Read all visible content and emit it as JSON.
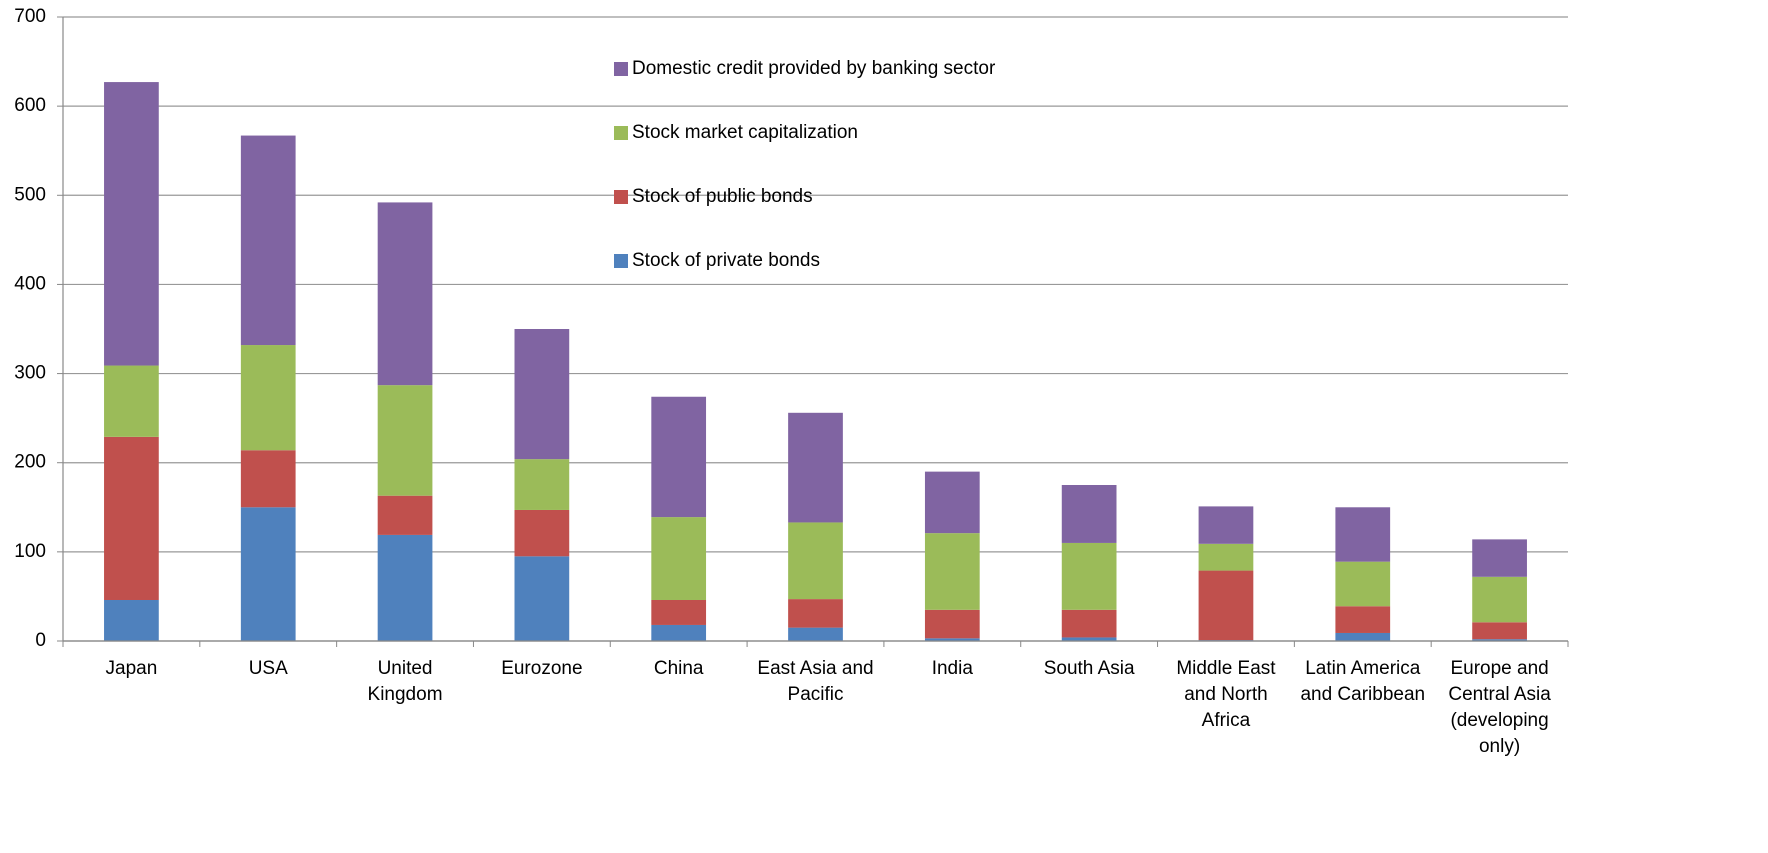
{
  "chart_data": {
    "type": "stacked_bar",
    "categories": [
      "Japan",
      "USA",
      "United Kingdom",
      "Eurozone",
      "China",
      "East Asia and Pacific",
      "India",
      "South Asia",
      "Middle East and North Africa",
      "Latin America and Caribbean",
      "Europe and Central Asia (developing only)"
    ],
    "series": [
      {
        "name": "Stock of private bonds",
        "color": "#4f81bd",
        "values": [
          46,
          150,
          119,
          95,
          18,
          15,
          3,
          4,
          1,
          9,
          2
        ]
      },
      {
        "name": "Stock of public bonds",
        "color": "#c0504d",
        "values": [
          183,
          64,
          44,
          52,
          28,
          32,
          32,
          31,
          78,
          30,
          19
        ]
      },
      {
        "name": "Stock market capitalization",
        "color": "#9bbb59",
        "values": [
          80,
          118,
          124,
          57,
          93,
          86,
          86,
          75,
          30,
          50,
          51
        ]
      },
      {
        "name": "Domestic credit provided by banking sector",
        "color": "#8064a2",
        "values": [
          318,
          235,
          205,
          146,
          135,
          123,
          69,
          65,
          42,
          61,
          42
        ]
      }
    ],
    "ylim": [
      0,
      700
    ],
    "yticks": [
      0,
      100,
      200,
      300,
      400,
      500,
      600,
      700
    ],
    "grid": true
  }
}
